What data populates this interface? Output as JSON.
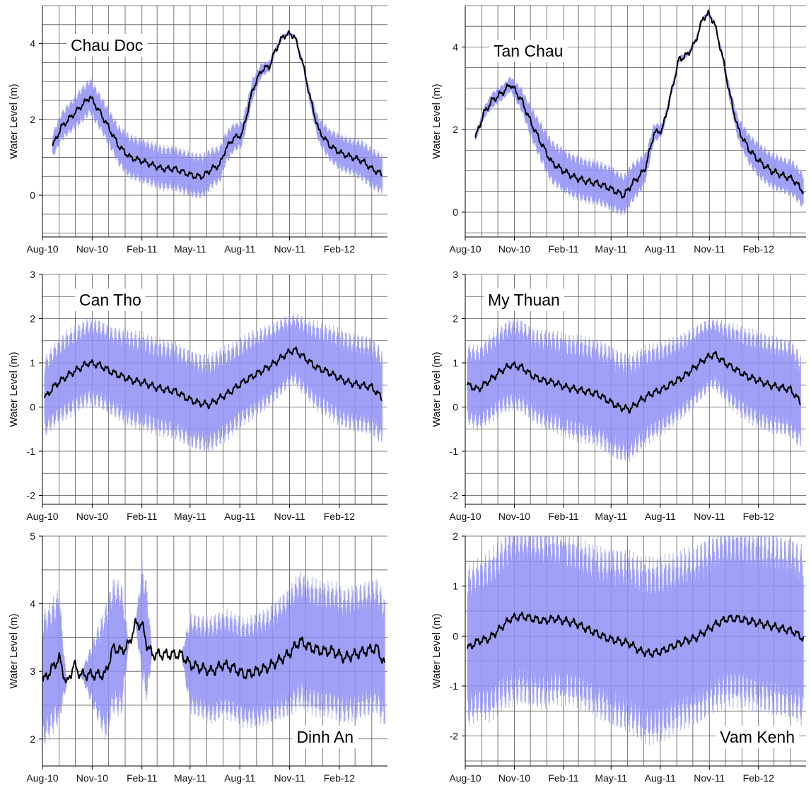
{
  "figure": {
    "x_tick_labels": [
      "Aug-10",
      "Nov-10",
      "Feb-11",
      "May-11",
      "Aug-11",
      "Nov-11",
      "Feb-12"
    ],
    "range_color": "#8f8ff5",
    "mean_color": "#000000"
  },
  "chart_data": [
    {
      "type": "line",
      "station": "Chau Doc",
      "ylabel": "Water Level (m)",
      "xlim": [
        "2010-08-01",
        "2012-04-30"
      ],
      "ylim": [
        -1.1,
        5
      ],
      "yticks": [
        0,
        2,
        4
      ],
      "grid": true,
      "series": [
        {
          "x": [
            "2010-08-20",
            "2010-09-05",
            "2010-09-25",
            "2010-10-15",
            "2010-10-28",
            "2010-11-15",
            "2010-12-01",
            "2010-12-20",
            "2011-01-10",
            "2011-02-01",
            "2011-02-20",
            "2011-03-10",
            "2011-04-01",
            "2011-04-20",
            "2011-05-10",
            "2011-05-25",
            "2011-06-10",
            "2011-06-25",
            "2011-07-05",
            "2011-07-20",
            "2011-08-05",
            "2011-08-25",
            "2011-09-10",
            "2011-09-25",
            "2011-10-05",
            "2011-10-20",
            "2011-11-01",
            "2011-11-10",
            "2011-11-25",
            "2011-12-10",
            "2011-12-25",
            "2012-01-15",
            "2012-02-05",
            "2012-02-25",
            "2012-03-15",
            "2012-04-01",
            "2012-04-20"
          ],
          "y": [
            1.3,
            1.8,
            2.1,
            2.4,
            2.6,
            2.2,
            1.8,
            1.3,
            1.0,
            0.9,
            0.8,
            0.7,
            0.7,
            0.6,
            0.5,
            0.5,
            0.7,
            0.8,
            1.2,
            1.5,
            1.6,
            2.8,
            3.3,
            3.4,
            3.8,
            4.2,
            4.25,
            4.2,
            3.5,
            2.5,
            1.7,
            1.3,
            1.1,
            1.0,
            0.9,
            0.7,
            0.55
          ],
          "band": [
            0.35,
            0.4,
            0.45,
            0.5,
            0.5,
            0.5,
            0.5,
            0.55,
            0.6,
            0.6,
            0.6,
            0.6,
            0.6,
            0.6,
            0.6,
            0.6,
            0.55,
            0.5,
            0.45,
            0.4,
            0.35,
            0.3,
            0.2,
            0.15,
            0.1,
            0.05,
            0.05,
            0.05,
            0.1,
            0.2,
            0.35,
            0.45,
            0.5,
            0.5,
            0.55,
            0.55,
            0.55
          ]
        }
      ]
    },
    {
      "type": "line",
      "station": "Tan Chau",
      "ylabel": "Water Level (m)",
      "xlim": [
        "2010-08-01",
        "2012-04-30"
      ],
      "ylim": [
        -0.6,
        5
      ],
      "yticks": [
        0,
        2,
        4
      ],
      "grid": true,
      "series": [
        {
          "x": [
            "2010-08-20",
            "2010-09-05",
            "2010-09-20",
            "2010-10-10",
            "2010-10-25",
            "2010-11-15",
            "2010-12-01",
            "2010-12-20",
            "2011-01-10",
            "2011-02-01",
            "2011-02-20",
            "2011-03-15",
            "2011-04-05",
            "2011-04-25",
            "2011-05-10",
            "2011-05-25",
            "2011-06-10",
            "2011-06-25",
            "2011-07-05",
            "2011-07-20",
            "2011-08-05",
            "2011-08-20",
            "2011-09-05",
            "2011-09-20",
            "2011-10-05",
            "2011-10-20",
            "2011-10-30",
            "2011-11-10",
            "2011-11-25",
            "2011-12-10",
            "2011-12-25",
            "2012-01-15",
            "2012-02-05",
            "2012-02-25",
            "2012-03-15",
            "2012-04-05",
            "2012-04-25"
          ],
          "y": [
            1.8,
            2.4,
            2.7,
            2.9,
            3.1,
            2.7,
            2.2,
            1.7,
            1.2,
            1.0,
            0.85,
            0.75,
            0.7,
            0.6,
            0.5,
            0.4,
            0.7,
            0.9,
            1.1,
            1.9,
            2.0,
            2.8,
            3.7,
            3.8,
            4.1,
            4.7,
            4.8,
            4.6,
            3.8,
            2.8,
            2.0,
            1.5,
            1.2,
            1.0,
            0.9,
            0.8,
            0.5
          ],
          "band": [
            0.1,
            0.15,
            0.2,
            0.2,
            0.2,
            0.3,
            0.4,
            0.5,
            0.55,
            0.55,
            0.55,
            0.55,
            0.55,
            0.55,
            0.55,
            0.5,
            0.5,
            0.45,
            0.35,
            0.25,
            0.15,
            0.1,
            0.1,
            0.05,
            0.05,
            0.05,
            0.05,
            0.05,
            0.1,
            0.2,
            0.3,
            0.4,
            0.45,
            0.45,
            0.45,
            0.45,
            0.45
          ]
        }
      ]
    },
    {
      "type": "line",
      "station": "Can Tho",
      "ylabel": "Water Level (m)",
      "xlim": [
        "2010-08-01",
        "2012-04-30"
      ],
      "ylim": [
        -2.2,
        3
      ],
      "yticks": [
        -2,
        -1,
        0,
        1,
        2,
        3
      ],
      "grid": true,
      "series": [
        {
          "x": [
            "2010-08-05",
            "2010-08-25",
            "2010-09-15",
            "2010-10-05",
            "2010-10-25",
            "2010-11-15",
            "2010-12-05",
            "2010-12-25",
            "2011-01-15",
            "2011-02-05",
            "2011-02-25",
            "2011-03-15",
            "2011-04-05",
            "2011-04-25",
            "2011-05-15",
            "2011-06-05",
            "2011-06-25",
            "2011-07-15",
            "2011-08-05",
            "2011-08-25",
            "2011-09-15",
            "2011-10-05",
            "2011-10-25",
            "2011-11-10",
            "2011-11-30",
            "2011-12-20",
            "2012-01-10",
            "2012-02-01",
            "2012-02-20",
            "2012-03-10",
            "2012-04-01",
            "2012-04-20"
          ],
          "y": [
            0.2,
            0.5,
            0.7,
            0.85,
            1.0,
            0.95,
            0.8,
            0.7,
            0.6,
            0.55,
            0.45,
            0.4,
            0.35,
            0.2,
            0.1,
            0.05,
            0.2,
            0.35,
            0.55,
            0.7,
            0.85,
            1.0,
            1.2,
            1.3,
            1.1,
            0.9,
            0.8,
            0.65,
            0.55,
            0.5,
            0.45,
            0.2
          ],
          "band": [
            0.9,
            0.95,
            1.0,
            1.0,
            1.0,
            1.0,
            1.0,
            1.05,
            1.1,
            1.1,
            1.1,
            1.1,
            1.1,
            1.1,
            1.1,
            1.1,
            1.1,
            1.05,
            1.0,
            1.0,
            0.95,
            0.9,
            0.85,
            0.8,
            0.9,
            1.0,
            1.05,
            1.1,
            1.1,
            1.1,
            1.1,
            1.1
          ]
        }
      ]
    },
    {
      "type": "line",
      "station": "My Thuan",
      "ylabel": "Water Level (m)",
      "xlim": [
        "2010-08-01",
        "2012-04-30"
      ],
      "ylim": [
        -2.2,
        3
      ],
      "yticks": [
        -2,
        -1,
        0,
        1,
        2,
        3
      ],
      "grid": true,
      "series": [
        {
          "x": [
            "2010-08-05",
            "2010-08-25",
            "2010-09-15",
            "2010-10-05",
            "2010-10-25",
            "2010-11-15",
            "2010-12-05",
            "2010-12-25",
            "2011-01-15",
            "2011-02-05",
            "2011-02-25",
            "2011-03-15",
            "2011-04-05",
            "2011-04-25",
            "2011-05-15",
            "2011-06-05",
            "2011-06-25",
            "2011-07-15",
            "2011-08-05",
            "2011-08-25",
            "2011-09-15",
            "2011-10-05",
            "2011-10-25",
            "2011-11-10",
            "2011-11-30",
            "2011-12-20",
            "2012-01-10",
            "2012-02-01",
            "2012-02-20",
            "2012-03-10",
            "2012-04-01",
            "2012-04-20"
          ],
          "y": [
            0.5,
            0.4,
            0.6,
            0.8,
            0.95,
            0.9,
            0.7,
            0.6,
            0.55,
            0.45,
            0.4,
            0.35,
            0.3,
            0.15,
            0.0,
            -0.05,
            0.15,
            0.3,
            0.4,
            0.55,
            0.7,
            0.9,
            1.1,
            1.2,
            1.0,
            0.85,
            0.7,
            0.6,
            0.5,
            0.45,
            0.4,
            0.1
          ],
          "band": [
            0.9,
            0.95,
            1.0,
            1.0,
            1.05,
            1.05,
            1.05,
            1.1,
            1.15,
            1.15,
            1.2,
            1.2,
            1.2,
            1.25,
            1.25,
            1.2,
            1.15,
            1.1,
            1.05,
            1.0,
            0.95,
            0.9,
            0.85,
            0.8,
            0.9,
            1.0,
            1.05,
            1.1,
            1.1,
            1.1,
            1.1,
            1.1
          ]
        }
      ]
    },
    {
      "type": "line",
      "station": "Dinh An",
      "ylabel": "Water Level (m)",
      "xlim": [
        "2010-08-01",
        "2012-04-30"
      ],
      "ylim": [
        1.6,
        5
      ],
      "yticks": [
        2,
        3,
        4,
        5
      ],
      "grid": true,
      "series": [
        {
          "x": [
            "2010-08-02",
            "2010-08-15",
            "2010-09-01",
            "2010-09-15",
            "2010-09-28",
            "2010-10-10",
            "2010-11-25",
            "2010-12-10",
            "2010-12-25",
            "2011-01-08",
            "2011-01-20",
            "2011-02-01",
            "2011-02-10",
            "2011-02-20",
            "2011-04-15",
            "2011-05-01",
            "2011-05-20",
            "2011-06-10",
            "2011-07-01",
            "2011-07-20",
            "2011-08-10",
            "2011-09-01",
            "2011-09-20",
            "2011-10-10",
            "2011-10-30",
            "2011-11-20",
            "2011-12-10",
            "2011-12-30",
            "2012-01-20",
            "2012-02-10",
            "2012-03-01",
            "2012-03-20",
            "2012-04-10",
            "2012-04-25"
          ],
          "y": [
            2.85,
            3.0,
            3.2,
            2.8,
            3.1,
            2.95,
            2.95,
            3.35,
            3.3,
            3.4,
            3.7,
            3.7,
            3.4,
            3.25,
            3.25,
            3.1,
            3.05,
            3.0,
            3.1,
            3.05,
            2.95,
            3.0,
            3.05,
            3.15,
            3.25,
            3.45,
            3.35,
            3.3,
            3.3,
            3.2,
            3.25,
            3.3,
            3.35,
            3.1
          ],
          "band": [
            1.0,
            1.0,
            1.0,
            0.0,
            0.0,
            0.0,
            1.0,
            1.0,
            1.0,
            0.0,
            0.0,
            0.9,
            0.9,
            0.0,
            0.0,
            0.75,
            0.75,
            0.8,
            0.8,
            0.8,
            0.8,
            0.85,
            0.85,
            0.9,
            0.95,
            1.0,
            1.0,
            1.0,
            1.0,
            1.0,
            1.0,
            1.0,
            1.0,
            1.0
          ]
        }
      ]
    },
    {
      "type": "line",
      "station": "Vam Kenh",
      "ylabel": "Water Level (m)",
      "xlim": [
        "2010-08-01",
        "2012-04-30"
      ],
      "ylim": [
        -2.6,
        2
      ],
      "yticks": [
        -2,
        -1,
        0,
        1,
        2
      ],
      "grid": true,
      "series": [
        {
          "x": [
            "2010-08-05",
            "2010-08-25",
            "2010-09-15",
            "2010-10-05",
            "2010-10-25",
            "2010-11-15",
            "2010-12-05",
            "2010-12-25",
            "2011-01-15",
            "2011-02-05",
            "2011-02-25",
            "2011-03-15",
            "2011-04-05",
            "2011-04-25",
            "2011-05-15",
            "2011-06-05",
            "2011-06-25",
            "2011-07-15",
            "2011-08-05",
            "2011-08-25",
            "2011-09-15",
            "2011-10-05",
            "2011-10-25",
            "2011-11-15",
            "2011-12-05",
            "2011-12-25",
            "2012-01-15",
            "2012-02-05",
            "2012-02-25",
            "2012-03-15",
            "2012-04-05",
            "2012-04-25"
          ],
          "y": [
            -0.25,
            -0.1,
            -0.05,
            0.15,
            0.35,
            0.4,
            0.35,
            0.3,
            0.35,
            0.3,
            0.25,
            0.15,
            0.05,
            -0.05,
            -0.1,
            -0.15,
            -0.3,
            -0.35,
            -0.3,
            -0.2,
            -0.1,
            -0.05,
            0.1,
            0.25,
            0.35,
            0.35,
            0.3,
            0.25,
            0.2,
            0.15,
            0.1,
            -0.05
          ],
          "band": [
            1.6,
            1.6,
            1.7,
            1.7,
            1.8,
            1.8,
            1.8,
            1.8,
            1.75,
            1.7,
            1.7,
            1.7,
            1.7,
            1.75,
            1.8,
            1.8,
            1.85,
            1.85,
            1.85,
            1.8,
            1.8,
            1.8,
            1.8,
            1.8,
            1.8,
            1.8,
            1.8,
            1.8,
            1.8,
            1.8,
            1.8,
            1.8
          ]
        }
      ]
    }
  ]
}
